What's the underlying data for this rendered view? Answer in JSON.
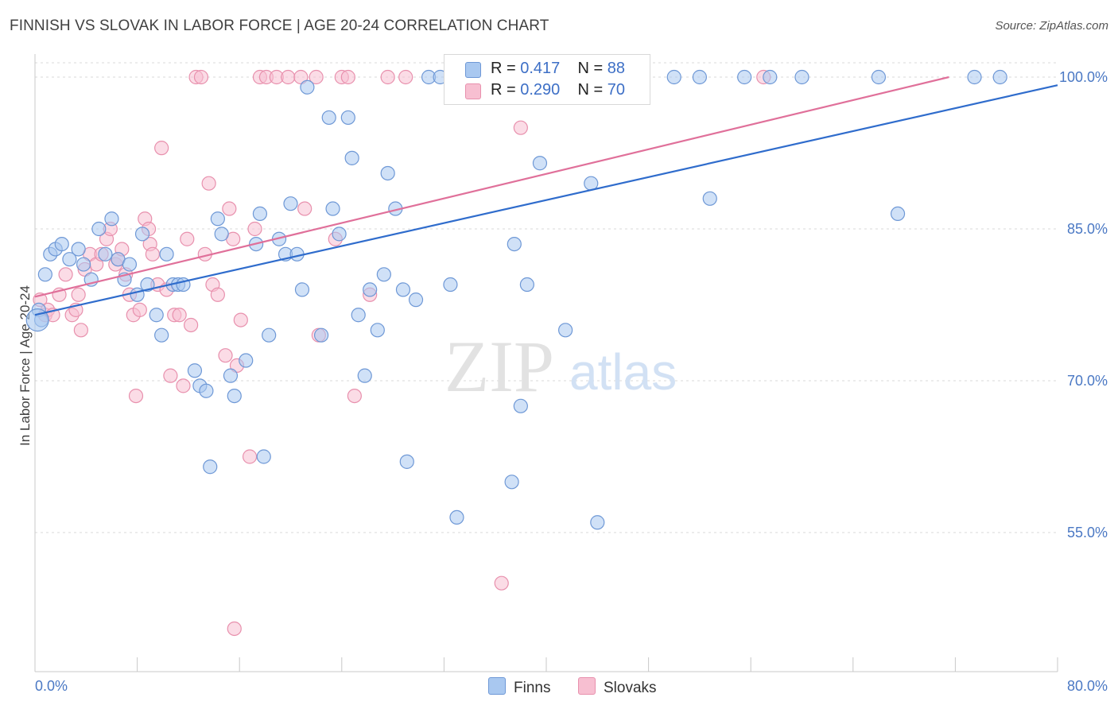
{
  "title": "FINNISH VS SLOVAK IN LABOR FORCE | AGE 20-24 CORRELATION CHART",
  "source": "Source: ZipAtlas.com",
  "watermark": {
    "zip": "ZIP",
    "atlas": "atlas"
  },
  "colors": {
    "finns_fill": "#a9c8f0",
    "finns_stroke": "#6e98d6",
    "finns_line": "#2f6ccc",
    "slovaks_fill": "#f7bfd1",
    "slovaks_stroke": "#e890ad",
    "slovaks_line": "#e0709a",
    "grid": "#d9d9d9",
    "tick_text": "#4a78c4"
  },
  "legend_top": {
    "finns": {
      "r_label": "R = ",
      "r_value": "0.417",
      "n_label": "N = ",
      "n_value": "88"
    },
    "slovaks": {
      "r_label": "R = ",
      "r_value": "0.290",
      "n_label": "N = ",
      "n_value": "70"
    }
  },
  "legend_bottom": {
    "finns": "Finns",
    "slovaks": "Slovaks"
  },
  "chart_data": {
    "type": "scatter",
    "title": "FINNISH VS SLOVAK IN LABOR FORCE | AGE 20-24 CORRELATION CHART",
    "xlabel": "",
    "ylabel": "In Labor Force | Age 20-24",
    "xlim": [
      0,
      80
    ],
    "ylim": [
      41,
      102
    ],
    "x_tick_labels": [
      "0.0%",
      "80.0%"
    ],
    "y_ticks": [
      55,
      70,
      85,
      100
    ],
    "y_tick_labels": [
      "55.0%",
      "70.0%",
      "85.0%",
      "100.0%"
    ],
    "grid": true,
    "legend": "top-center and bottom",
    "series": [
      {
        "name": "Finns",
        "r": 0.417,
        "n": 88,
        "trend": {
          "x": [
            0,
            80
          ],
          "y": [
            76.5,
            99.2
          ]
        },
        "points": [
          [
            0.3,
            77.0
          ],
          [
            0.5,
            76.0
          ],
          [
            0.8,
            80.5
          ],
          [
            1.2,
            82.5
          ],
          [
            1.6,
            83.0
          ],
          [
            2.1,
            83.5
          ],
          [
            2.7,
            82.0
          ],
          [
            3.4,
            83.0
          ],
          [
            3.8,
            81.5
          ],
          [
            4.4,
            80.0
          ],
          [
            5.0,
            85.0
          ],
          [
            5.5,
            82.5
          ],
          [
            6.0,
            86.0
          ],
          [
            6.5,
            82.0
          ],
          [
            7.0,
            80.0
          ],
          [
            7.4,
            81.5
          ],
          [
            8.0,
            78.5
          ],
          [
            8.4,
            84.5
          ],
          [
            8.8,
            79.5
          ],
          [
            9.5,
            76.5
          ],
          [
            9.9,
            74.5
          ],
          [
            10.3,
            82.5
          ],
          [
            10.8,
            79.5
          ],
          [
            11.2,
            79.5
          ],
          [
            11.6,
            79.5
          ],
          [
            12.5,
            71.0
          ],
          [
            12.9,
            69.5
          ],
          [
            13.4,
            69.0
          ],
          [
            13.7,
            61.5
          ],
          [
            14.3,
            86.0
          ],
          [
            14.6,
            84.5
          ],
          [
            15.3,
            70.5
          ],
          [
            15.6,
            68.5
          ],
          [
            16.5,
            72.0
          ],
          [
            17.3,
            83.5
          ],
          [
            17.6,
            86.5
          ],
          [
            17.9,
            62.5
          ],
          [
            18.3,
            74.5
          ],
          [
            19.1,
            84.0
          ],
          [
            19.6,
            82.5
          ],
          [
            20.0,
            87.5
          ],
          [
            20.5,
            82.5
          ],
          [
            20.9,
            79.0
          ],
          [
            21.3,
            99.0
          ],
          [
            22.4,
            74.5
          ],
          [
            23.0,
            96.0
          ],
          [
            23.3,
            87.0
          ],
          [
            23.8,
            84.5
          ],
          [
            24.5,
            96.0
          ],
          [
            24.8,
            92.0
          ],
          [
            25.3,
            76.5
          ],
          [
            25.8,
            70.5
          ],
          [
            26.2,
            79.0
          ],
          [
            26.8,
            75.0
          ],
          [
            27.3,
            80.5
          ],
          [
            27.6,
            90.5
          ],
          [
            28.2,
            87.0
          ],
          [
            28.8,
            79.0
          ],
          [
            29.1,
            62.0
          ],
          [
            29.8,
            78.0
          ],
          [
            30.8,
            100.0
          ],
          [
            31.7,
            100.0
          ],
          [
            32.5,
            79.5
          ],
          [
            33.0,
            56.5
          ],
          [
            34.0,
            100.0
          ],
          [
            35.0,
            100.0
          ],
          [
            36.5,
            100.0
          ],
          [
            37.3,
            60.0
          ],
          [
            37.5,
            83.5
          ],
          [
            38.0,
            67.5
          ],
          [
            38.5,
            79.5
          ],
          [
            39.5,
            91.5
          ],
          [
            41.0,
            100.0
          ],
          [
            41.5,
            75.0
          ],
          [
            43.5,
            89.5
          ],
          [
            44.0,
            56.0
          ],
          [
            44.8,
            100.0
          ],
          [
            47.0,
            100.0
          ],
          [
            50.0,
            100.0
          ],
          [
            52.0,
            100.0
          ],
          [
            52.8,
            88.0
          ],
          [
            55.5,
            100.0
          ],
          [
            57.5,
            100.0
          ],
          [
            60.0,
            100.0
          ],
          [
            66.0,
            100.0
          ],
          [
            67.5,
            86.5
          ],
          [
            73.5,
            100.0
          ],
          [
            75.5,
            100.0
          ]
        ]
      },
      {
        "name": "Slovaks",
        "r": 0.29,
        "n": 70,
        "trend": {
          "x": [
            0,
            71.5
          ],
          "y": [
            78.3,
            100
          ]
        },
        "points": [
          [
            0.4,
            78.0
          ],
          [
            0.8,
            76.5
          ],
          [
            1.0,
            77.0
          ],
          [
            1.4,
            76.5
          ],
          [
            1.9,
            78.5
          ],
          [
            2.4,
            80.5
          ],
          [
            2.9,
            76.5
          ],
          [
            3.2,
            77.0
          ],
          [
            3.4,
            78.5
          ],
          [
            3.6,
            75.0
          ],
          [
            3.9,
            81.0
          ],
          [
            4.3,
            82.5
          ],
          [
            4.8,
            81.5
          ],
          [
            5.2,
            82.5
          ],
          [
            5.6,
            84.0
          ],
          [
            5.9,
            85.0
          ],
          [
            6.3,
            81.5
          ],
          [
            6.5,
            82.0
          ],
          [
            6.8,
            83.0
          ],
          [
            7.1,
            80.5
          ],
          [
            7.4,
            78.5
          ],
          [
            7.7,
            76.5
          ],
          [
            7.9,
            68.5
          ],
          [
            8.2,
            77.0
          ],
          [
            8.6,
            86.0
          ],
          [
            8.9,
            85.0
          ],
          [
            9.0,
            83.5
          ],
          [
            9.2,
            82.5
          ],
          [
            9.6,
            79.5
          ],
          [
            9.9,
            93.0
          ],
          [
            10.3,
            79.0
          ],
          [
            10.6,
            70.5
          ],
          [
            10.9,
            76.5
          ],
          [
            11.3,
            76.5
          ],
          [
            11.6,
            69.5
          ],
          [
            11.9,
            84.0
          ],
          [
            12.2,
            75.5
          ],
          [
            12.6,
            100.0
          ],
          [
            13.0,
            100.0
          ],
          [
            13.3,
            82.5
          ],
          [
            13.6,
            89.5
          ],
          [
            13.9,
            79.5
          ],
          [
            14.3,
            78.5
          ],
          [
            14.9,
            72.5
          ],
          [
            15.2,
            87.0
          ],
          [
            15.5,
            84.0
          ],
          [
            15.8,
            71.5
          ],
          [
            16.1,
            76.0
          ],
          [
            16.8,
            62.5
          ],
          [
            17.2,
            85.0
          ],
          [
            17.6,
            100.0
          ],
          [
            18.1,
            100.0
          ],
          [
            18.9,
            100.0
          ],
          [
            19.8,
            100.0
          ],
          [
            20.8,
            100.0
          ],
          [
            21.1,
            87.0
          ],
          [
            22.0,
            100.0
          ],
          [
            22.2,
            74.5
          ],
          [
            23.5,
            84.0
          ],
          [
            24.0,
            100.0
          ],
          [
            25.0,
            68.5
          ],
          [
            26.2,
            78.5
          ],
          [
            27.6,
            100.0
          ],
          [
            29.0,
            100.0
          ],
          [
            34.0,
            100.0
          ],
          [
            36.5,
            50.0
          ],
          [
            38.0,
            95.0
          ],
          [
            57.0,
            100.0
          ],
          [
            15.6,
            45.5
          ],
          [
            24.5,
            100.0
          ]
        ]
      }
    ]
  }
}
